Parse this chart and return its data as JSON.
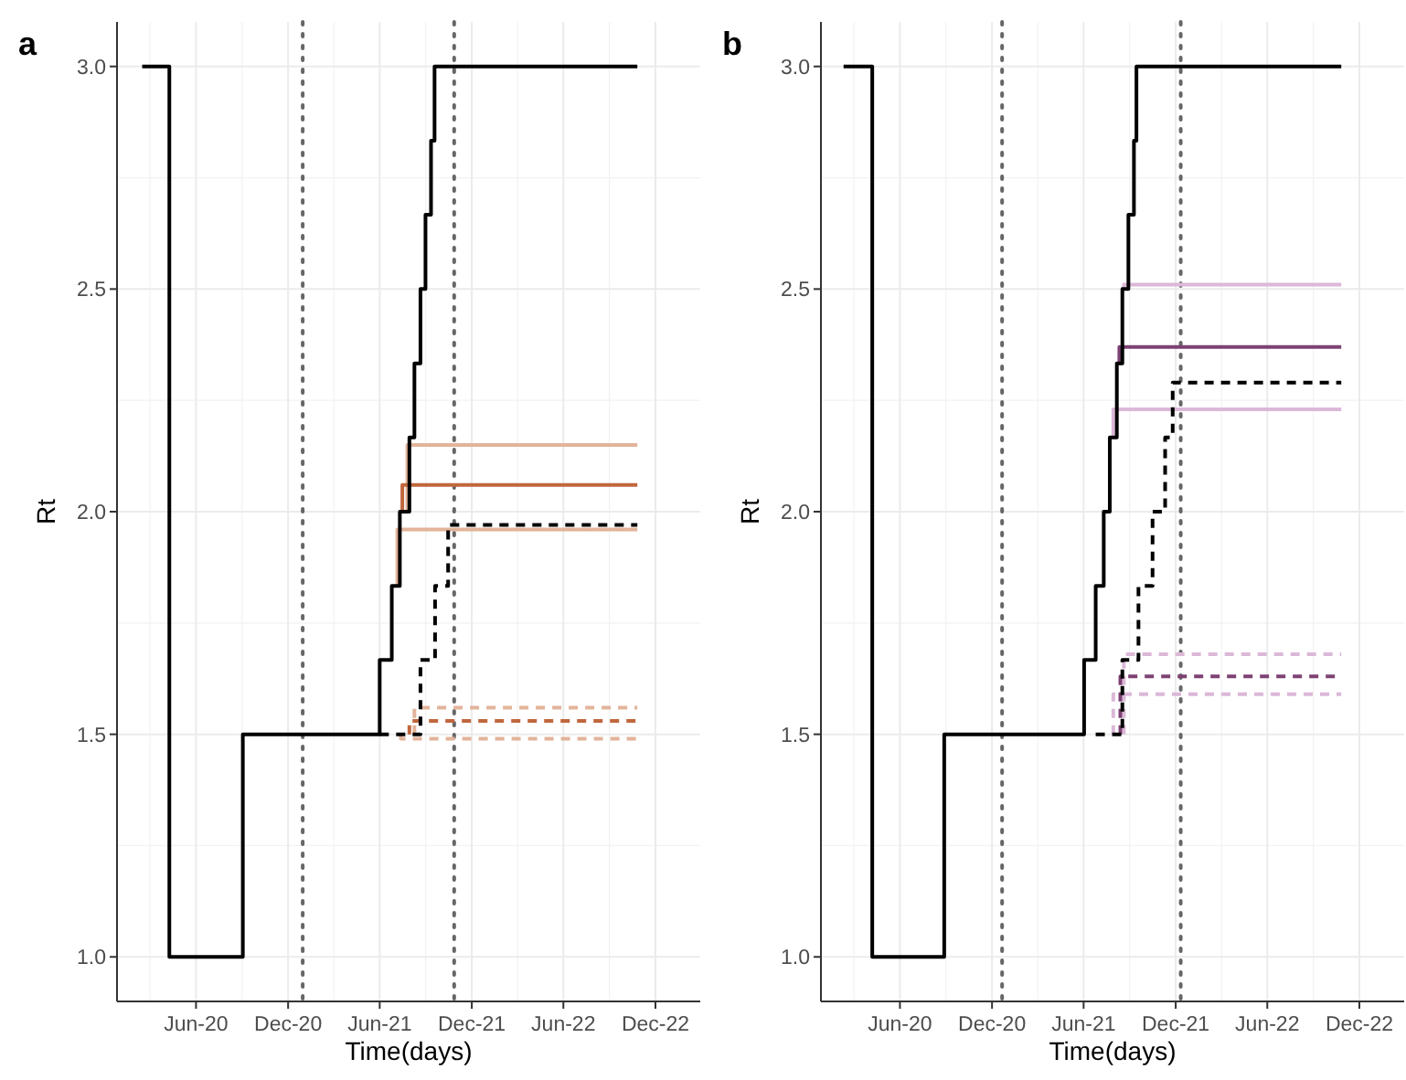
{
  "chart_data": [
    {
      "type": "step",
      "title": "a",
      "xlabel": "Time(days)",
      "ylabel": "Rt",
      "xlim": [
        "2019-12-27",
        "2023-02-28"
      ],
      "ylim": [
        0.9,
        3.1
      ],
      "xticks": [
        {
          "value": "2020-06-01",
          "label": "Jun-20"
        },
        {
          "value": "2020-12-01",
          "label": "Dec-20"
        },
        {
          "value": "2021-06-01",
          "label": "Jun-21"
        },
        {
          "value": "2021-12-01",
          "label": "Dec-21"
        },
        {
          "value": "2022-06-01",
          "label": "Jun-22"
        },
        {
          "value": "2022-12-01",
          "label": "Dec-22"
        }
      ],
      "yticks": [
        {
          "value": 1,
          "label": "1.0"
        },
        {
          "value": 1.5,
          "label": "1.5"
        },
        {
          "value": 2,
          "label": "2.0"
        },
        {
          "value": 2.5,
          "label": "2.5"
        },
        {
          "value": 3,
          "label": "3.0"
        }
      ],
      "grid": true,
      "ref_lines": [
        {
          "axis": "x",
          "value": "2020-12-30",
          "color": "#666666",
          "line_style": "dotted"
        },
        {
          "axis": "x",
          "value": "2021-10-27",
          "color": "#666666",
          "line_style": "dotted"
        }
      ],
      "series": [
        {
          "color": "#e2b49a",
          "line_style": "solid",
          "x": [
            "2021-07-06",
            "2021-07-06",
            "2022-10-26"
          ],
          "values": [
            1.833,
            1.96,
            1.96
          ]
        },
        {
          "color": "#e2b49a",
          "line_style": "solid",
          "x": [
            "2021-07-26",
            "2021-07-26",
            "2022-10-26"
          ],
          "values": [
            2.0,
            2.15,
            2.15
          ]
        },
        {
          "color": "#c0673e",
          "line_style": "solid",
          "x": [
            "2021-07-16",
            "2021-07-16",
            "2022-10-26"
          ],
          "values": [
            2.0,
            2.06,
            2.06
          ]
        },
        {
          "color": "#e2b49a",
          "line_style": "dashed",
          "x": [
            "2021-07-13",
            "2021-07-13",
            "2022-10-26"
          ],
          "values": [
            1.5,
            1.49,
            1.49
          ]
        },
        {
          "color": "#e2b49a",
          "line_style": "dashed",
          "x": [
            "2021-08-09",
            "2021-08-09",
            "2022-10-26"
          ],
          "values": [
            1.5,
            1.56,
            1.56
          ]
        },
        {
          "color": "#c0673e",
          "line_style": "dashed",
          "x": [
            "2021-07-30",
            "2021-07-30",
            "2022-10-26"
          ],
          "values": [
            1.5,
            1.53,
            1.53
          ]
        },
        {
          "color": "#000000",
          "line_style": "dashed",
          "x": [
            "2021-06-01",
            "2021-08-21",
            "2021-09-19",
            "2021-10-15",
            "2022-10-26"
          ],
          "values": [
            1.5,
            1.667,
            1.833,
            1.97,
            1.97
          ]
        },
        {
          "color": "#000000",
          "line_style": "solid",
          "x": [
            "2020-02-15",
            "2020-04-09",
            "2020-09-02",
            "2021-06-01",
            "2021-06-25",
            "2021-07-11",
            "2021-07-30",
            "2021-08-09",
            "2021-08-21",
            "2021-08-31",
            "2021-09-11",
            "2021-09-18",
            "2022-10-26"
          ],
          "values": [
            3.0,
            1.0,
            1.5,
            1.667,
            1.833,
            2.0,
            2.167,
            2.333,
            2.5,
            2.667,
            2.833,
            3.0,
            3.0
          ]
        }
      ]
    },
    {
      "type": "step",
      "title": "b",
      "xlabel": "Time(days)",
      "ylabel": "Rt",
      "xlim": [
        "2019-12-27",
        "2023-02-28"
      ],
      "ylim": [
        0.9,
        3.1
      ],
      "xticks": [
        {
          "value": "2020-06-01",
          "label": "Jun-20"
        },
        {
          "value": "2020-12-01",
          "label": "Dec-20"
        },
        {
          "value": "2021-06-01",
          "label": "Jun-21"
        },
        {
          "value": "2021-12-01",
          "label": "Dec-21"
        },
        {
          "value": "2022-06-01",
          "label": "Jun-22"
        },
        {
          "value": "2022-12-01",
          "label": "Dec-22"
        }
      ],
      "yticks": [
        {
          "value": 1,
          "label": "1.0"
        },
        {
          "value": 1.5,
          "label": "1.5"
        },
        {
          "value": 2,
          "label": "2.0"
        },
        {
          "value": 2.5,
          "label": "2.5"
        },
        {
          "value": 3,
          "label": "3.0"
        }
      ],
      "grid": true,
      "ref_lines": [
        {
          "axis": "x",
          "value": "2020-12-21",
          "color": "#666666",
          "line_style": "dotted"
        },
        {
          "axis": "x",
          "value": "2021-12-11",
          "color": "#666666",
          "line_style": "dotted"
        }
      ],
      "series": [
        {
          "color": "#dcb8d8",
          "line_style": "solid",
          "x": [
            "2021-07-30",
            "2021-07-30",
            "2022-10-26"
          ],
          "values": [
            2.167,
            2.23,
            2.23
          ]
        },
        {
          "color": "#dcb8d8",
          "line_style": "solid",
          "x": [
            "2021-08-20",
            "2021-08-20",
            "2022-10-26"
          ],
          "values": [
            2.5,
            2.51,
            2.51
          ]
        },
        {
          "color": "#7d4273",
          "line_style": "solid",
          "x": [
            "2021-08-11",
            "2021-08-11",
            "2022-10-26"
          ],
          "values": [
            2.333,
            2.37,
            2.37
          ]
        },
        {
          "color": "#dcb8d8",
          "line_style": "dashed",
          "x": [
            "2021-07-30",
            "2021-07-30",
            "2022-10-26"
          ],
          "values": [
            1.5,
            1.59,
            1.59
          ]
        },
        {
          "color": "#dcb8d8",
          "line_style": "dashed",
          "x": [
            "2021-08-20",
            "2021-08-20",
            "2022-10-26"
          ],
          "values": [
            1.5,
            1.68,
            1.68
          ]
        },
        {
          "color": "#7d4273",
          "line_style": "dashed",
          "x": [
            "2021-08-13",
            "2021-08-13",
            "2022-10-26"
          ],
          "values": [
            1.5,
            1.63,
            1.63
          ]
        },
        {
          "color": "#000000",
          "line_style": "dashed",
          "x": [
            "2021-06-25",
            "2021-08-17",
            "2021-09-18",
            "2021-10-16",
            "2021-11-10",
            "2021-11-25",
            "2022-10-26"
          ],
          "values": [
            1.5,
            1.667,
            1.833,
            2.0,
            2.167,
            2.29,
            2.29
          ]
        },
        {
          "color": "#000000",
          "line_style": "solid",
          "x": [
            "2020-02-10",
            "2020-04-07",
            "2020-08-28",
            "2021-06-02",
            "2021-06-25",
            "2021-07-11",
            "2021-07-23",
            "2021-08-06",
            "2021-08-17",
            "2021-08-29",
            "2021-09-09",
            "2021-09-14",
            "2022-10-26"
          ],
          "values": [
            3.0,
            1.0,
            1.5,
            1.667,
            1.833,
            2.0,
            2.167,
            2.333,
            2.5,
            2.667,
            2.833,
            3.0,
            3.0
          ]
        }
      ]
    }
  ]
}
